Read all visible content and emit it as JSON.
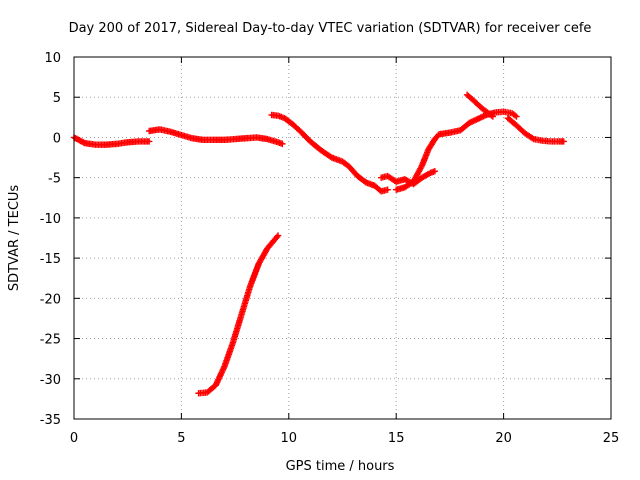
{
  "chart_data": {
    "type": "scatter",
    "title": "Day 200 of 2017, Sidereal Day-to-day VTEC variation (SDTVAR) for receiver cefe",
    "xlabel": "GPS time / hours",
    "ylabel": "SDTVAR / TECUs",
    "xlim": [
      0,
      25
    ],
    "ylim": [
      -35,
      10
    ],
    "xticks": [
      0,
      5,
      10,
      15,
      20,
      25
    ],
    "yticks": [
      10,
      5,
      0,
      -5,
      -10,
      -15,
      -20,
      -25,
      -30,
      -35
    ],
    "xtick_labels": [
      "0",
      "5",
      "10",
      "15",
      "20",
      "25"
    ],
    "ytick_labels": [
      "10",
      "5",
      "0",
      "-5",
      "-10",
      "-15",
      "-20",
      "-25",
      "-30",
      "-35"
    ],
    "grid": true,
    "marker": "plus",
    "color": "#ff0000",
    "series": [
      {
        "name": "track-1",
        "x": [
          0.0,
          0.5,
          1.0,
          1.5,
          2.0,
          2.5,
          3.0,
          3.5
        ],
        "y": [
          0.0,
          -0.7,
          -0.9,
          -0.9,
          -0.8,
          -0.6,
          -0.5,
          -0.5
        ]
      },
      {
        "name": "track-2",
        "x": [
          3.5,
          4.0,
          4.5,
          5.0,
          5.5,
          6.0,
          6.5,
          7.0,
          7.5,
          8.0,
          8.5,
          9.0,
          9.5,
          9.7
        ],
        "y": [
          0.8,
          1.0,
          0.7,
          0.3,
          -0.1,
          -0.3,
          -0.3,
          -0.3,
          -0.2,
          -0.1,
          0.0,
          -0.2,
          -0.6,
          -0.8
        ]
      },
      {
        "name": "track-3",
        "x": [
          5.8,
          6.2,
          6.6,
          7.0,
          7.4,
          7.8,
          8.2,
          8.6,
          9.0,
          9.5
        ],
        "y": [
          -31.8,
          -31.7,
          -30.8,
          -28.5,
          -25.5,
          -22.0,
          -18.5,
          -15.7,
          -13.8,
          -12.2
        ]
      },
      {
        "name": "track-4",
        "x": [
          9.2,
          9.5,
          9.8,
          10.2,
          10.6,
          11.0,
          11.5,
          12.0,
          12.5,
          12.8,
          13.2,
          13.6,
          14.0,
          14.3,
          14.6
        ],
        "y": [
          2.8,
          2.7,
          2.4,
          1.6,
          0.6,
          -0.5,
          -1.6,
          -2.5,
          -3.0,
          -3.6,
          -4.8,
          -5.6,
          -6.0,
          -6.7,
          -6.5
        ]
      },
      {
        "name": "track-5",
        "x": [
          14.3,
          14.6,
          15.0,
          15.4,
          15.8,
          16.2,
          16.6,
          16.8
        ],
        "y": [
          -5.0,
          -4.8,
          -5.5,
          -5.2,
          -5.8,
          -5.0,
          -4.4,
          -4.2
        ]
      },
      {
        "name": "track-6",
        "x": [
          15.0,
          15.4,
          15.8,
          16.2,
          16.5,
          16.8,
          17.0,
          17.5,
          18.0,
          18.4,
          18.8,
          19.2,
          19.6,
          20.0,
          20.4,
          20.6
        ],
        "y": [
          -6.5,
          -6.2,
          -5.5,
          -3.5,
          -1.5,
          -0.2,
          0.4,
          0.6,
          0.9,
          1.8,
          2.3,
          2.8,
          3.1,
          3.2,
          3.0,
          2.6
        ]
      },
      {
        "name": "track-7",
        "x": [
          18.3,
          18.6,
          19.0,
          19.5
        ],
        "y": [
          5.3,
          4.6,
          3.6,
          2.6
        ]
      },
      {
        "name": "track-8",
        "x": [
          20.2,
          20.6,
          21.0,
          21.4,
          21.8,
          22.2,
          22.6,
          22.8
        ],
        "y": [
          2.4,
          1.5,
          0.5,
          -0.2,
          -0.4,
          -0.5,
          -0.5,
          -0.5
        ]
      }
    ]
  }
}
